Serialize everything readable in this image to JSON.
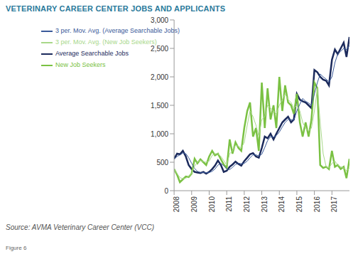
{
  "chart_data": {
    "type": "line",
    "title": "VETERINARY CAREER CENTER JOBS AND APPLICANTS",
    "source": "Source: AVMA Veterinary Career Center (VCC)",
    "figure_label": "Figure 6",
    "x": [
      2008,
      2008.17,
      2008.33,
      2008.5,
      2008.67,
      2008.83,
      2009,
      2009.17,
      2009.33,
      2009.5,
      2009.67,
      2009.83,
      2010,
      2010.17,
      2010.33,
      2010.5,
      2010.67,
      2010.83,
      2011,
      2011.17,
      2011.33,
      2011.5,
      2011.67,
      2011.83,
      2012,
      2012.17,
      2012.33,
      2012.5,
      2012.67,
      2012.83,
      2013,
      2013.17,
      2013.33,
      2013.5,
      2013.67,
      2013.83,
      2014,
      2014.17,
      2014.33,
      2014.5,
      2014.67,
      2014.83,
      2015,
      2015.17,
      2015.33,
      2015.5,
      2015.67,
      2015.83,
      2016,
      2016.17,
      2016.33,
      2016.5,
      2016.67,
      2016.83,
      2017,
      2017.17,
      2017.33,
      2017.5,
      2017.67,
      2017.83,
      2018
    ],
    "series": [
      {
        "name": "Average Searchable Jobs",
        "color": "#1b2a5c",
        "values": [
          560,
          650,
          640,
          700,
          600,
          450,
          380,
          330,
          320,
          310,
          330,
          300,
          330,
          380,
          440,
          530,
          450,
          330,
          350,
          420,
          460,
          510,
          470,
          440,
          520,
          580,
          640,
          660,
          600,
          580,
          750,
          950,
          920,
          1000,
          900,
          1000,
          1100,
          1200,
          1250,
          1300,
          1200,
          1250,
          1700,
          1600,
          1570,
          1550,
          1500,
          1450,
          2120,
          2080,
          2000,
          1950,
          1930,
          1850,
          2300,
          2480,
          2400,
          2500,
          2600,
          2350,
          2700
        ]
      },
      {
        "name": "New Job Seekers",
        "color": "#7ac143",
        "values": [
          380,
          280,
          150,
          200,
          250,
          240,
          300,
          560,
          480,
          550,
          500,
          450,
          600,
          700,
          620,
          650,
          550,
          460,
          400,
          900,
          650,
          850,
          750,
          700,
          1100,
          1400,
          1550,
          950,
          1100,
          700,
          1900,
          1100,
          1800,
          1250,
          1500,
          1100,
          2000,
          1400,
          1850,
          1550,
          1500,
          1350,
          1700,
          1200,
          950,
          1200,
          950,
          1250,
          1900,
          1800,
          450,
          400,
          420,
          380,
          700,
          420,
          450,
          380,
          420,
          220,
          560
        ]
      },
      {
        "name": "3 per. Mov. Avg. (Average Searchable Jobs)",
        "color": "#3a5a9a",
        "values": [
          560,
          600,
          630,
          660,
          650,
          580,
          480,
          390,
          340,
          320,
          320,
          315,
          320,
          340,
          380,
          450,
          480,
          440,
          380,
          370,
          410,
          460,
          480,
          475,
          480,
          520,
          580,
          630,
          630,
          610,
          640,
          760,
          880,
          950,
          940,
          970,
          1030,
          1120,
          1200,
          1250,
          1250,
          1240,
          1400,
          1520,
          1620,
          1570,
          1540,
          1500,
          1700,
          1900,
          2050,
          2000,
          1960,
          1910,
          2000,
          2250,
          2400,
          2450,
          2500,
          2480,
          2550
        ]
      },
      {
        "name": "3 per. Mov. Avg. (New Job Seekers)",
        "color": "#a8d88a",
        "values": [
          380,
          300,
          230,
          210,
          220,
          250,
          300,
          430,
          510,
          530,
          510,
          500,
          520,
          620,
          650,
          650,
          600,
          530,
          450,
          650,
          700,
          800,
          780,
          750,
          850,
          1150,
          1400,
          1300,
          1150,
          950,
          1250,
          1300,
          1500,
          1450,
          1400,
          1350,
          1500,
          1600,
          1700,
          1600,
          1550,
          1450,
          1500,
          1400,
          1200,
          1100,
          1050,
          1100,
          1400,
          1800,
          1200,
          650,
          420,
          400,
          480,
          520,
          450,
          420,
          400,
          350,
          400
        ]
      }
    ],
    "xlim": [
      2008,
      2018
    ],
    "xticks": [
      2008,
      2009,
      2010,
      2011,
      2012,
      2013,
      2014,
      2015,
      2016,
      2017
    ],
    "ylim": [
      0,
      3000
    ],
    "yticks": [
      0,
      500,
      {
        "value": 1000,
        "label": "1,000"
      },
      {
        "value": 1500,
        "label": "1,500"
      },
      {
        "value": 2000,
        "label": "2,000"
      },
      {
        "value": 2500,
        "label": "2,500"
      },
      {
        "value": 3000,
        "label": "3,000"
      }
    ],
    "grid": false,
    "legend": "top-left"
  }
}
